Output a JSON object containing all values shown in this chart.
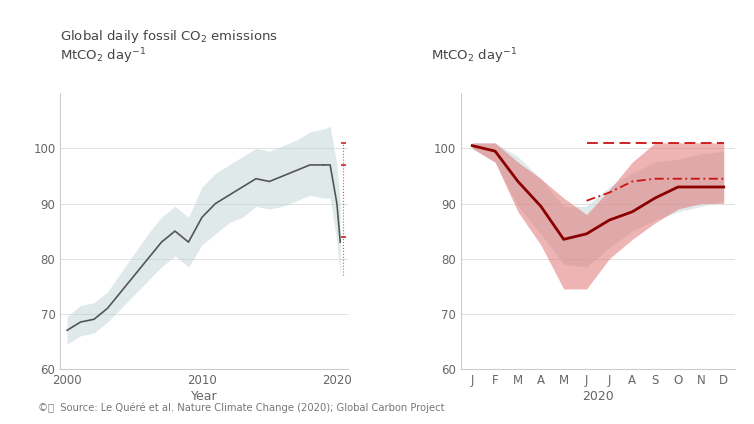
{
  "fig_width": 7.54,
  "fig_height": 4.24,
  "background_color": "#ffffff",
  "source_text": "©ⓘ  Source: Le Quéré et al. Nature Climate Change (2020); Global Carbon Project",
  "ylim": [
    60,
    110
  ],
  "yticks": [
    60,
    70,
    80,
    90,
    100
  ],
  "band_color": "#b8cfd2",
  "band_alpha": 0.45,
  "line_color_left": "#555555",
  "dark_red": "#8b0000",
  "dash_red": "#cc1111",
  "left_years": [
    2000,
    2001,
    2002,
    2003,
    2004,
    2005,
    2006,
    2007,
    2008,
    2009,
    2010,
    2011,
    2012,
    2013,
    2014,
    2015,
    2016,
    2017,
    2018,
    2019
  ],
  "left_main": [
    67.0,
    68.5,
    69.0,
    71.0,
    74.0,
    77.0,
    80.0,
    83.0,
    85.0,
    83.0,
    87.5,
    90.0,
    91.5,
    93.0,
    94.5,
    94.0,
    95.0,
    96.0,
    97.0,
    97.0
  ],
  "left_upper": [
    69.5,
    71.5,
    72.0,
    74.0,
    77.5,
    81.0,
    84.5,
    87.5,
    89.5,
    87.5,
    93.0,
    95.5,
    97.0,
    98.5,
    100.0,
    99.5,
    100.5,
    101.5,
    103.0,
    103.5
  ],
  "left_lower": [
    64.5,
    66.0,
    66.5,
    68.5,
    71.0,
    73.5,
    76.0,
    78.5,
    80.5,
    78.5,
    82.5,
    84.5,
    86.5,
    87.5,
    89.5,
    89.0,
    89.5,
    90.5,
    91.5,
    91.0
  ],
  "left_xlim": [
    1999.5,
    2020.8
  ],
  "left_xticks": [
    2000,
    2010,
    2020
  ],
  "right_month_labels": [
    "J",
    "F",
    "M",
    "A",
    "M",
    "J",
    "J",
    "A",
    "S",
    "O",
    "N",
    "D"
  ],
  "right_main": [
    100.5,
    99.5,
    94.0,
    89.5,
    83.5,
    84.5,
    87.0,
    88.5,
    91.0,
    93.0,
    93.0,
    93.0
  ],
  "right_upper_red": [
    101.0,
    101.0,
    97.5,
    94.5,
    91.0,
    88.0,
    92.5,
    97.5,
    101.0,
    101.0,
    101.0,
    101.0
  ],
  "right_lower_red": [
    100.0,
    97.5,
    88.5,
    82.5,
    74.5,
    74.5,
    80.0,
    83.5,
    86.5,
    89.0,
    90.0,
    90.0
  ],
  "right_upper_gray": [
    101.0,
    101.0,
    98.5,
    94.5,
    89.5,
    89.5,
    93.0,
    95.5,
    97.5,
    98.0,
    99.0,
    99.5
  ],
  "right_lower_gray": [
    100.0,
    97.5,
    89.5,
    84.5,
    79.0,
    78.5,
    82.0,
    85.0,
    87.0,
    88.5,
    89.5,
    90.5
  ],
  "right_dash_top_x": [
    5,
    6,
    7,
    8,
    9,
    10,
    11
  ],
  "right_dash_top_y": [
    101.0,
    101.0,
    101.0,
    101.0,
    101.0,
    101.0,
    101.0
  ],
  "right_dash_mid_x": [
    5,
    6,
    7,
    8,
    9,
    10,
    11
  ],
  "right_dash_mid_y": [
    90.5,
    92.0,
    94.0,
    94.5,
    94.5,
    94.5,
    94.5
  ],
  "red_band_color": "#e07575",
  "red_band_alpha": 0.55
}
